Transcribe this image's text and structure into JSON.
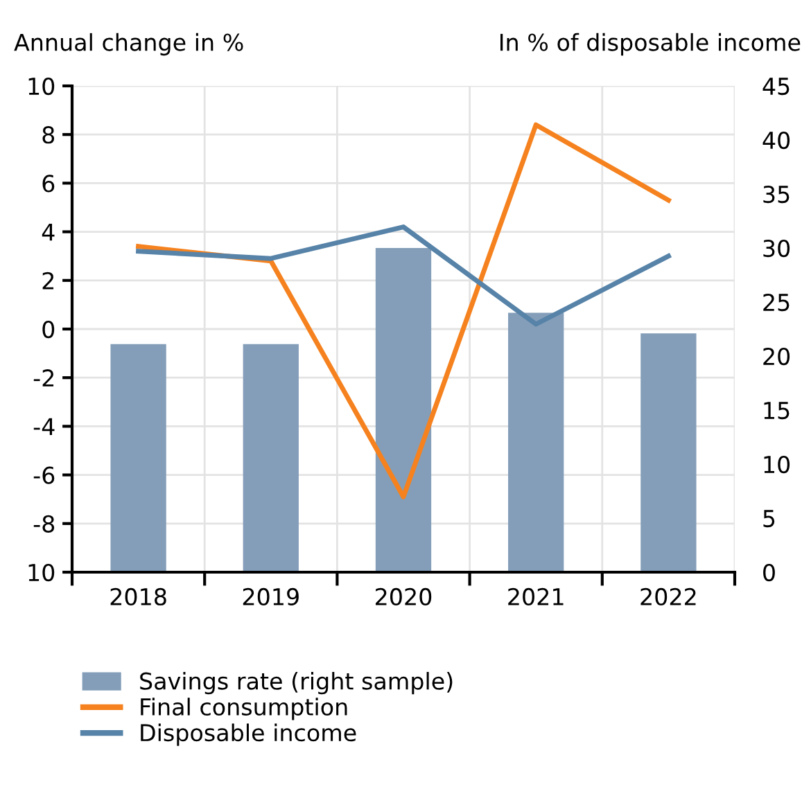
{
  "chart_data": {
    "type": "line",
    "ylabel": "Annual change in %",
    "y2label": "In % of disposable income",
    "categories": [
      "2018",
      "2019",
      "2020",
      "2021",
      "2022"
    ],
    "series": [
      {
        "name": "Savings rate (right sample)",
        "type": "bar",
        "axis": "y2",
        "color": "#849eb9",
        "values": [
          21.1,
          21.1,
          30.0,
          24.0,
          22.1
        ]
      },
      {
        "name": "Final consumption",
        "color": "#f5821f",
        "values": [
          3.4,
          2.8,
          -6.9,
          8.4,
          5.3
        ]
      },
      {
        "name": "Disposable income",
        "color": "#5783a8",
        "values": [
          3.2,
          2.9,
          4.2,
          0.2,
          3.0
        ]
      }
    ],
    "ylim": [
      -10,
      10
    ],
    "yticks": [
      {
        "value": -10,
        "label": "10"
      },
      -8,
      -6,
      -4,
      -2,
      0,
      2,
      4,
      6,
      8,
      10
    ],
    "y2lim": [
      0,
      45
    ],
    "y2ticks": [
      0,
      5,
      10,
      15,
      20,
      25,
      30,
      35,
      40,
      45
    ],
    "grid": true,
    "legend": "bottom",
    "marker": "none",
    "line_style": "solid"
  }
}
